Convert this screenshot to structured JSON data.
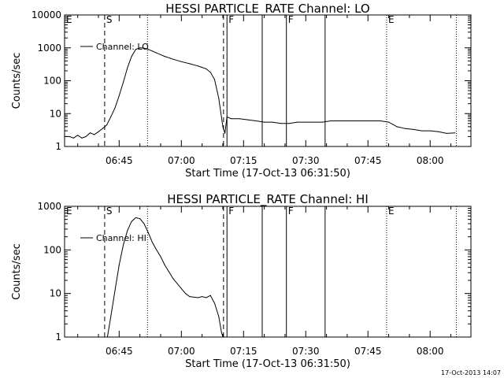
{
  "footer": {
    "timestamp": "17-Oct-2013 14:07"
  },
  "chart_data": [
    {
      "type": "line",
      "title": "HESSI PARTICLE_RATE Channel: LO",
      "xlabel": "Start Time (17-Oct-13 06:31:50)",
      "ylabel": "Counts/sec",
      "yscale": "log",
      "ylim": [
        1,
        10000
      ],
      "xlim": [
        "06:31:50",
        "08:09:50"
      ],
      "x_tick_labels": [
        "06:45",
        "07:00",
        "07:15",
        "07:30",
        "07:45",
        "08:00"
      ],
      "y_tick_labels": [
        "1",
        "10",
        "100",
        "1000",
        "10000"
      ],
      "legend": {
        "position": "top-left",
        "entries": [
          "Channel: LO"
        ]
      },
      "series": [
        {
          "name": "Channel: LO",
          "x": [
            "06:31:50",
            "06:33",
            "06:34",
            "06:35",
            "06:36",
            "06:37",
            "06:38",
            "06:39",
            "06:40",
            "06:41",
            "06:42",
            "06:43",
            "06:44",
            "06:45",
            "06:46",
            "06:47",
            "06:48",
            "06:49",
            "06:50",
            "06:51",
            "06:52",
            "06:53",
            "06:54",
            "06:55",
            "06:56",
            "06:58",
            "07:00",
            "07:02",
            "07:04",
            "07:06",
            "07:07",
            "07:08",
            "07:09",
            "07:10",
            "07:10:30",
            "07:11",
            "07:12",
            "07:14",
            "07:16",
            "07:18",
            "07:20",
            "07:22",
            "07:24",
            "07:26",
            "07:28",
            "07:30",
            "07:32",
            "07:34",
            "07:36",
            "07:38",
            "07:40",
            "07:42",
            "07:44",
            "07:46",
            "07:48",
            "07:50",
            "07:52",
            "07:54",
            "07:56",
            "07:58",
            "08:00",
            "08:02",
            "08:04",
            "08:06"
          ],
          "values": [
            2,
            2,
            1.8,
            2.2,
            1.8,
            2,
            2.6,
            2.3,
            2.8,
            3.5,
            4.5,
            8,
            15,
            35,
            90,
            250,
            550,
            900,
            1000,
            980,
            900,
            800,
            700,
            620,
            550,
            450,
            380,
            330,
            280,
            230,
            180,
            110,
            30,
            4,
            2.5,
            8,
            7,
            7,
            6.5,
            6,
            5.5,
            5.5,
            5,
            5,
            5.5,
            5.5,
            5.5,
            5.5,
            6,
            6,
            6,
            6,
            6,
            6,
            6,
            5.5,
            4,
            3.5,
            3.3,
            3,
            3,
            2.8,
            2.5,
            2.6
          ]
        }
      ],
      "markers": [
        {
          "time": "06:31:50",
          "label": "E",
          "style": "dashed"
        },
        {
          "time": "06:41:30",
          "label": "S",
          "style": "dashed"
        },
        {
          "time": "07:10:10",
          "label": "",
          "style": "dashed"
        },
        {
          "time": "07:11:00",
          "label": "F",
          "style": "solid"
        },
        {
          "time": "07:19:30",
          "label": "",
          "style": "solid"
        },
        {
          "time": "07:25:20",
          "label": "F",
          "style": "solid"
        },
        {
          "time": "07:34:40",
          "label": "",
          "style": "solid"
        },
        {
          "time": "06:51:50",
          "label": "",
          "style": "dotted"
        },
        {
          "time": "07:49:30",
          "label": "E",
          "style": "dotted"
        },
        {
          "time": "08:06:20",
          "label": "",
          "style": "dotted"
        }
      ]
    },
    {
      "type": "line",
      "title": "HESSI PARTICLE_RATE Channel: HI",
      "xlabel": "Start Time (17-Oct-13 06:31:50)",
      "ylabel": "Counts/sec",
      "yscale": "log",
      "ylim": [
        1,
        1000
      ],
      "xlim": [
        "06:31:50",
        "08:09:50"
      ],
      "x_tick_labels": [
        "06:45",
        "07:00",
        "07:15",
        "07:30",
        "07:45",
        "08:00"
      ],
      "y_tick_labels": [
        "1",
        "10",
        "100",
        "1000"
      ],
      "legend": {
        "position": "top-left",
        "entries": [
          "Channel: HI"
        ]
      },
      "series": [
        {
          "name": "Channel: HI",
          "x": [
            "06:42:10",
            "06:43",
            "06:44",
            "06:45",
            "06:46",
            "06:47",
            "06:48",
            "06:49",
            "06:50",
            "06:51",
            "06:52",
            "06:53",
            "06:54",
            "06:55",
            "06:56",
            "06:58",
            "07:00",
            "07:01",
            "07:02",
            "07:04",
            "07:05",
            "07:06",
            "07:07",
            "07:08",
            "07:09",
            "07:09:40",
            "07:10"
          ],
          "values": [
            1,
            3,
            12,
            45,
            130,
            280,
            450,
            550,
            520,
            400,
            250,
            150,
            100,
            70,
            45,
            22,
            13,
            10,
            8.5,
            8,
            8.5,
            8,
            9,
            6,
            3,
            1.3,
            1
          ]
        }
      ],
      "markers": [
        {
          "time": "06:31:50",
          "label": "E",
          "style": "dashed"
        },
        {
          "time": "06:41:30",
          "label": "S",
          "style": "dashed"
        },
        {
          "time": "07:10:10",
          "label": "",
          "style": "dashed"
        },
        {
          "time": "07:11:00",
          "label": "F",
          "style": "solid"
        },
        {
          "time": "07:19:30",
          "label": "",
          "style": "solid"
        },
        {
          "time": "07:25:20",
          "label": "F",
          "style": "solid"
        },
        {
          "time": "07:34:40",
          "label": "",
          "style": "solid"
        },
        {
          "time": "06:51:50",
          "label": "",
          "style": "dotted"
        },
        {
          "time": "07:49:30",
          "label": "E",
          "style": "dotted"
        },
        {
          "time": "08:06:20",
          "label": "",
          "style": "dotted"
        }
      ]
    }
  ]
}
